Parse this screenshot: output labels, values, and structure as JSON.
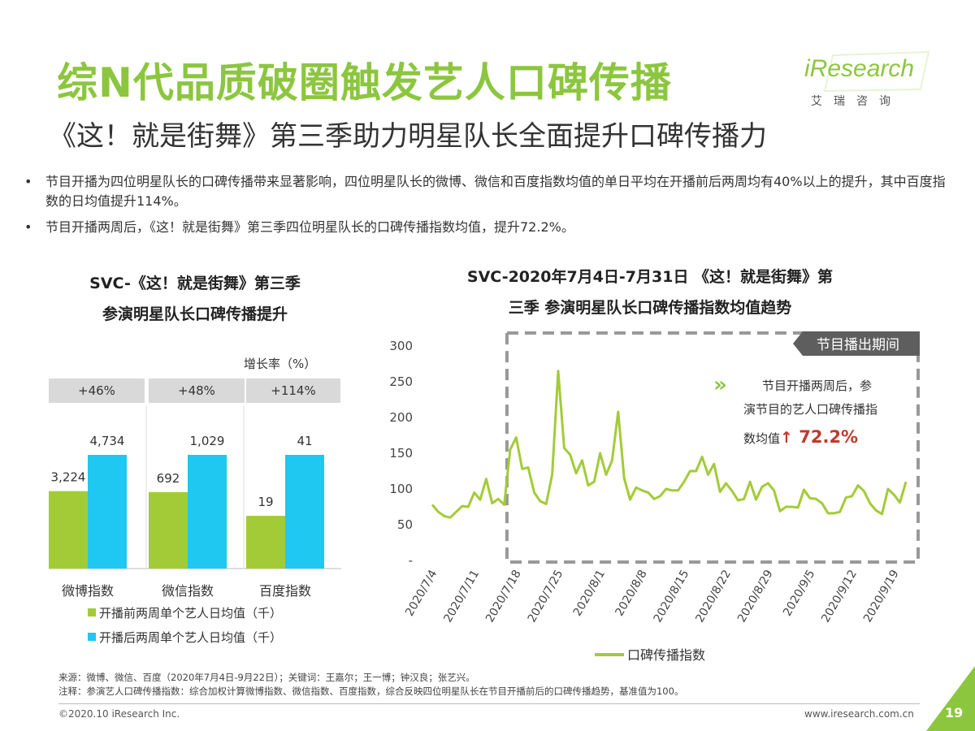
{
  "header": {
    "title": "综N代品质破圈触发艺人口碑传播",
    "subtitle": "《这！就是街舞》第三季助力明星队长全面提升口碑传播力"
  },
  "logo": {
    "word": "iResearch",
    "cn": "艾瑞咨询"
  },
  "bullets": [
    "节目开播为四位明星队长的口碑传播带来显著影响，四位明星队长的微博、微信和百度指数均值的单日平均在开播前后两周均有40%以上的提升，其中百度指数的日均值提升114%。",
    "节目开播两周后，《这！就是街舞》第三季四位明星队长的口碑传播指数均值，提升72.2%。"
  ],
  "colors": {
    "green": "#a3cb38",
    "blue": "#1ec8f0",
    "brand_green": "#8cc63f",
    "red": "#c0392b"
  },
  "left_chart": {
    "title_line1": "SVC-《这！就是街舞》第三季",
    "title_line2": "参演明星队长口碑传播提升",
    "growth_label": "增长率（%）"
  },
  "right_chart": {
    "title_line1": "SVC-2020年7月4日-7月31日 《这！就是街舞》第",
    "title_line2": "三季 参演明星队长口碑传播指数均值趋势",
    "badge": "节目播出期间",
    "note_text1": "节目开播两周后，参",
    "note_text2": "演节目的艺人口碑传播指",
    "note_text3": "数均值",
    "note_arrow": "↑",
    "note_value": "72.2%"
  },
  "chart_data": [
    {
      "type": "bar",
      "categories": [
        "微博指数",
        "微信指数",
        "百度指数"
      ],
      "series": [
        {
          "name": "开播前两周单个艺人日均值（千）",
          "values": [
            3224,
            692,
            19
          ],
          "labels": [
            "3,224",
            "692",
            "19"
          ]
        },
        {
          "name": "开播后两周单个艺人日均值（千）",
          "values": [
            4734,
            1029,
            41
          ],
          "labels": [
            "4,734",
            "1,029",
            "41"
          ]
        }
      ],
      "growth": [
        "+46%",
        "+48%",
        "+114%"
      ]
    },
    {
      "type": "line",
      "x_ticks": [
        "2020/7/4",
        "2020/7/11",
        "2020/7/18",
        "2020/7/25",
        "2020/8/1",
        "2020/8/8",
        "2020/8/15",
        "2020/8/22",
        "2020/8/29",
        "2020/9/5",
        "2020/9/12",
        "2020/9/19"
      ],
      "y_ticks": [
        "300",
        "250",
        "200",
        "150",
        "100",
        "50",
        "-"
      ],
      "ylim": [
        0,
        300
      ],
      "series": [
        {
          "name": "口碑传播指数",
          "values": [
            78,
            68,
            62,
            60,
            68,
            76,
            75,
            95,
            85,
            114,
            80,
            86,
            78,
            155,
            172,
            128,
            130,
            95,
            83,
            79,
            120,
            265,
            157,
            148,
            122,
            140,
            105,
            110,
            150,
            120,
            140,
            208,
            115,
            85,
            102,
            98,
            95,
            86,
            90,
            100,
            98,
            98,
            110,
            125,
            125,
            145,
            120,
            135,
            96,
            108,
            97,
            84,
            86,
            110,
            85,
            103,
            108,
            98,
            69,
            75,
            75,
            74,
            99,
            87,
            86,
            80,
            66,
            66,
            68,
            88,
            90,
            105,
            97,
            80,
            70,
            65,
            100,
            92,
            81,
            110
          ]
        }
      ],
      "highlight_start_index": 13
    }
  ],
  "footer": {
    "source": "来源：微博、微信、百度（2020年7月4日-9月22日）；关键词：王嘉尔；王一博；钟汉良；张艺兴。",
    "note": "注释：参演艺人口碑传播指数：综合加权计算微博指数、微信指数、百度指数，综合反映四位明星队长在节目开播前后的口碑传播趋势，基准值为100。",
    "copyright": "©2020.10 iResearch Inc.",
    "website": "www.iresearch.com.cn",
    "page": "19"
  }
}
